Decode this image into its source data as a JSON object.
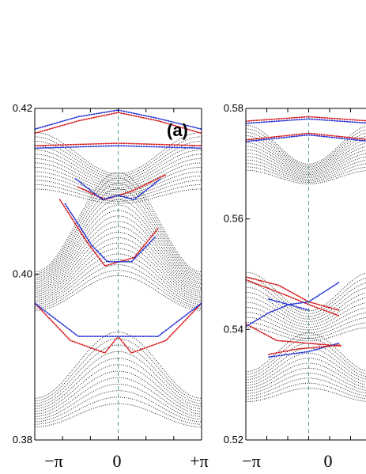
{
  "chart_data": [
    {
      "type": "scatter",
      "panel_label": "(a)",
      "ylim": [
        0.38,
        0.42
      ],
      "yticks": [
        "0.38",
        "0.40",
        "0.42"
      ],
      "xlim": [
        -3.1416,
        3.1416
      ],
      "xticks": [
        "−π",
        "0",
        "+π"
      ],
      "bulk_bands": [
        {
          "center": 0.386,
          "amp": 0.004,
          "count": 12,
          "spacing": 0.00055
        },
        {
          "center": 0.402,
          "amp": 0.006,
          "count": 20,
          "spacing": 0.00045
        },
        {
          "center": 0.412,
          "amp": -0.0025,
          "count": 14,
          "spacing": 0.0004
        }
      ],
      "edge_states": [
        {
          "color": "red",
          "points": [
            [
              -3.14,
              0.3965
            ],
            [
              -1.8,
              0.392
            ],
            [
              -0.5,
              0.3905
            ],
            [
              0,
              0.3925
            ],
            [
              0.5,
              0.3905
            ],
            [
              1.8,
              0.392
            ],
            [
              3.14,
              0.3965
            ]
          ]
        },
        {
          "color": "blue",
          "points": [
            [
              -3.14,
              0.3965
            ],
            [
              -1.5,
              0.3925
            ],
            [
              0,
              0.3925
            ],
            [
              1.5,
              0.3925
            ],
            [
              3.14,
              0.3965
            ]
          ]
        },
        {
          "color": "red",
          "points": [
            [
              -3.14,
              0.417
            ],
            [
              -1.5,
              0.4185
            ],
            [
              0,
              0.4195
            ],
            [
              1.5,
              0.4185
            ],
            [
              3.14,
              0.417
            ]
          ]
        },
        {
          "color": "blue",
          "points": [
            [
              -3.14,
              0.4175
            ],
            [
              -1.5,
              0.419
            ],
            [
              0,
              0.4198
            ],
            [
              1.5,
              0.4188
            ],
            [
              3.14,
              0.4175
            ]
          ]
        },
        {
          "color": "red",
          "points": [
            [
              -3.14,
              0.4155
            ],
            [
              0,
              0.4158
            ],
            [
              3.14,
              0.4155
            ]
          ]
        },
        {
          "color": "blue",
          "points": [
            [
              -3.14,
              0.4152
            ],
            [
              0,
              0.4155
            ],
            [
              3.14,
              0.4152
            ]
          ]
        },
        {
          "color": "red",
          "points": [
            [
              -1.5,
              0.4105
            ],
            [
              -0.5,
              0.409
            ],
            [
              0,
              0.4095
            ],
            [
              0.5,
              0.41
            ],
            [
              1.8,
              0.412
            ]
          ]
        },
        {
          "color": "blue",
          "points": [
            [
              -1.6,
              0.4115
            ],
            [
              -0.6,
              0.409
            ],
            [
              0,
              0.4095
            ],
            [
              0.6,
              0.409
            ],
            [
              1.6,
              0.4115
            ]
          ]
        },
        {
          "color": "red",
          "points": [
            [
              -2.2,
              0.409
            ],
            [
              -1.2,
              0.404
            ],
            [
              -0.5,
              0.401
            ],
            [
              0.6,
              0.402
            ],
            [
              1.5,
              0.4055
            ]
          ]
        },
        {
          "color": "blue",
          "points": [
            [
              -2.0,
              0.4085
            ],
            [
              -1.0,
              0.4035
            ],
            [
              -0.4,
              0.4015
            ],
            [
              0.5,
              0.4015
            ],
            [
              1.4,
              0.4045
            ]
          ]
        }
      ]
    },
    {
      "type": "scatter",
      "ylim": [
        0.52,
        0.58
      ],
      "yticks": [
        "0.52",
        "0.54",
        "0.56",
        "0.58"
      ],
      "xlim": [
        -3.1416,
        3.1416
      ],
      "xticks": [
        "−π",
        "0"
      ],
      "bulk_bands": [
        {
          "center": 0.532,
          "amp": 0.0035,
          "count": 12,
          "spacing": 0.0007
        },
        {
          "center": 0.543,
          "amp": -0.0035,
          "count": 12,
          "spacing": 0.0007
        },
        {
          "center": 0.5705,
          "amp": -0.0035,
          "count": 14,
          "spacing": 0.00045
        }
      ],
      "edge_states": [
        {
          "color": "red",
          "points": [
            [
              -3.14,
              0.5777
            ],
            [
              0,
              0.5785
            ],
            [
              3.14,
              0.5777
            ]
          ]
        },
        {
          "color": "blue",
          "points": [
            [
              -3.14,
              0.5773
            ],
            [
              0,
              0.5781
            ],
            [
              3.14,
              0.5773
            ]
          ]
        },
        {
          "color": "red",
          "points": [
            [
              -3.14,
              0.5743
            ],
            [
              0,
              0.5755
            ],
            [
              3.14,
              0.5743
            ]
          ]
        },
        {
          "color": "blue",
          "points": [
            [
              -3.14,
              0.574
            ],
            [
              0,
              0.5752
            ],
            [
              3.14,
              0.574
            ]
          ]
        },
        {
          "color": "red",
          "points": [
            [
              -3.14,
              0.5495
            ],
            [
              -1.5,
              0.548
            ],
            [
              0,
              0.545
            ],
            [
              1.5,
              0.5435
            ]
          ]
        },
        {
          "color": "red",
          "points": [
            [
              -3.14,
              0.549
            ],
            [
              -1.0,
              0.546
            ],
            [
              0,
              0.5445
            ],
            [
              1.5,
              0.5425
            ]
          ]
        },
        {
          "color": "blue",
          "points": [
            [
              -2.0,
              0.5455
            ],
            [
              -1.0,
              0.5445
            ],
            [
              0,
              0.545
            ],
            [
              1.5,
              0.5485
            ]
          ]
        },
        {
          "color": "red",
          "points": [
            [
              -3.14,
              0.541
            ],
            [
              -1.6,
              0.538
            ],
            [
              0,
              0.5375
            ],
            [
              1.6,
              0.537
            ]
          ]
        },
        {
          "color": "blue",
          "points": [
            [
              -3.14,
              0.5405
            ],
            [
              -2.0,
              0.543
            ],
            [
              -1.0,
              0.5445
            ],
            [
              0,
              0.5435
            ]
          ]
        },
        {
          "color": "blue",
          "points": [
            [
              -2.0,
              0.535
            ],
            [
              -1.0,
              0.5355
            ],
            [
              0,
              0.536
            ],
            [
              1.5,
              0.5375
            ]
          ]
        },
        {
          "color": "red",
          "points": [
            [
              -2.0,
              0.5355
            ],
            [
              -0.5,
              0.5365
            ],
            [
              0.5,
              0.5368
            ],
            [
              1.6,
              0.5372
            ]
          ]
        }
      ]
    }
  ],
  "colors": {
    "bulk": "#111111",
    "red": "#d7191c",
    "blue": "#1f2ed4",
    "center_line": "#2a8a8a",
    "frame": "#000000"
  }
}
